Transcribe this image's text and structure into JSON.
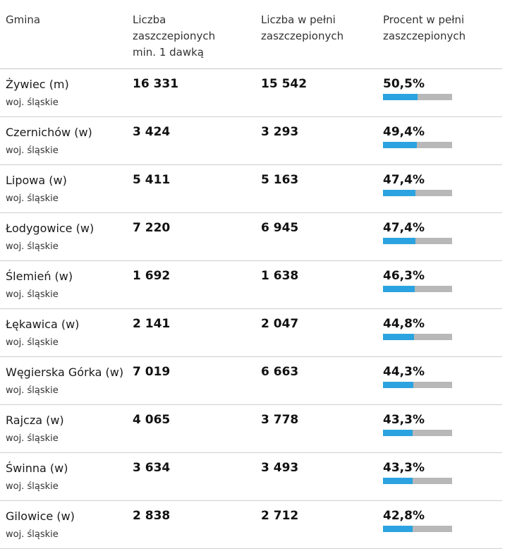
{
  "headers": {
    "gmina": "Gmina",
    "first_dose": [
      "Liczba",
      "zaszczepionych",
      "min. 1 dawką"
    ],
    "full": [
      "Liczba w pełni",
      "zaszczepionych"
    ],
    "percent": [
      "Procent w pełni",
      "zaszczepionych"
    ]
  },
  "colors": {
    "bar_fill": "#2aa3e0",
    "bar_track": "#b8b8b8"
  },
  "rows": [
    {
      "name": "Żywiec (m)",
      "region": "woj. śląskie",
      "first_dose": "16 331",
      "full": "15 542",
      "percent": "50,5%",
      "percent_value": 50.5
    },
    {
      "name": "Czernichów (w)",
      "region": "woj. śląskie",
      "first_dose": "3 424",
      "full": "3 293",
      "percent": "49,4%",
      "percent_value": 49.4
    },
    {
      "name": "Lipowa (w)",
      "region": "woj. śląskie",
      "first_dose": "5 411",
      "full": "5 163",
      "percent": "47,4%",
      "percent_value": 47.4
    },
    {
      "name": "Łodygowice (w)",
      "region": "woj. śląskie",
      "first_dose": "7 220",
      "full": "6 945",
      "percent": "47,4%",
      "percent_value": 47.4
    },
    {
      "name": "Ślemień (w)",
      "region": "woj. śląskie",
      "first_dose": "1 692",
      "full": "1 638",
      "percent": "46,3%",
      "percent_value": 46.3
    },
    {
      "name": "Łękawica (w)",
      "region": "woj. śląskie",
      "first_dose": "2 141",
      "full": "2 047",
      "percent": "44,8%",
      "percent_value": 44.8
    },
    {
      "name": "Węgierska Górka (w)",
      "region": "woj. śląskie",
      "first_dose": "7 019",
      "full": "6 663",
      "percent": "44,3%",
      "percent_value": 44.3
    },
    {
      "name": "Rajcza (w)",
      "region": "woj. śląskie",
      "first_dose": "4 065",
      "full": "3 778",
      "percent": "43,3%",
      "percent_value": 43.3
    },
    {
      "name": "Świnna (w)",
      "region": "woj. śląskie",
      "first_dose": "3 634",
      "full": "3 493",
      "percent": "43,3%",
      "percent_value": 43.3
    },
    {
      "name": "Gilowice (w)",
      "region": "woj. śląskie",
      "first_dose": "2 838",
      "full": "2 712",
      "percent": "42,8%",
      "percent_value": 42.8
    }
  ]
}
